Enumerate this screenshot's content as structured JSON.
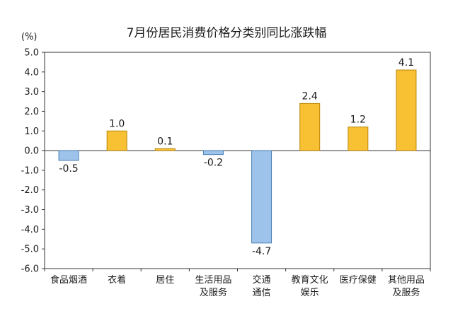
{
  "chart_data": {
    "type": "bar",
    "title": "7月份居民消费价格分类别同比涨跌幅",
    "unit": "(%)",
    "categories": [
      [
        "食品烟酒"
      ],
      [
        "衣着"
      ],
      [
        "居住"
      ],
      [
        "生活用品",
        "及服务"
      ],
      [
        "交通",
        "通信"
      ],
      [
        "教育文化",
        "娱乐"
      ],
      [
        "医疗保健"
      ],
      [
        "其他用品",
        "及服务"
      ]
    ],
    "values": [
      -0.5,
      1.0,
      0.1,
      -0.2,
      -4.7,
      2.4,
      1.2,
      4.1
    ],
    "value_labels": [
      "-0.5",
      "1.0",
      "0.1",
      "-0.2",
      "-4.7",
      "2.4",
      "1.2",
      "4.1"
    ],
    "ylim": [
      -6.0,
      5.0
    ],
    "yticks": [
      "5.0",
      "4.0",
      "3.0",
      "2.0",
      "1.0",
      "0.0",
      "-1.0",
      "-2.0",
      "-3.0",
      "-4.0",
      "-5.0",
      "-6.0"
    ],
    "grid": false,
    "colors": {
      "positive_fill": "#F8C033",
      "positive_stroke": "#B8860B",
      "negative_fill": "#9DC3EA",
      "negative_stroke": "#4A7FB8",
      "axis": "#333333"
    }
  }
}
